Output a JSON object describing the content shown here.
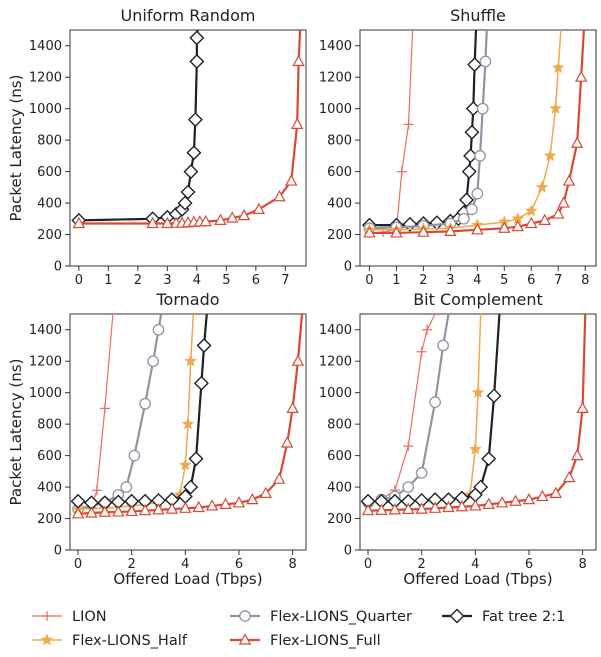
{
  "ylabel": "Packet Latency (ns)",
  "xlabel": "Offered Load (Tbps)",
  "legend": [
    {
      "key": "lion",
      "name": "LION",
      "color": "#e8705f",
      "marker": "plus",
      "width": 1.2
    },
    {
      "key": "half",
      "name": "Flex-LIONS_Half",
      "color": "#f0a84e",
      "marker": "star",
      "width": 1.5
    },
    {
      "key": "quarter",
      "name": "Flex-LIONS_Quarter",
      "color": "#8e96a3",
      "marker": "circle",
      "width": 2.2
    },
    {
      "key": "full",
      "name": "Flex-LIONS_Full",
      "color": "#d94a36",
      "marker": "triangle",
      "width": 2.2
    },
    {
      "key": "fat",
      "name": "Fat tree 2:1",
      "color": "#1e2228",
      "marker": "diamond",
      "width": 2.2
    }
  ],
  "chart_data": [
    {
      "type": "line",
      "title": "Uniform Random",
      "xlim": [
        -0.3,
        7.7
      ],
      "xticks": [
        "0",
        "1",
        "2",
        "3",
        "4",
        "5",
        "6",
        "7"
      ],
      "ylim": [
        0,
        1500
      ],
      "yticks": [
        "0",
        "200",
        "400",
        "600",
        "800",
        "1000",
        "1200",
        "1400"
      ],
      "series": [
        {
          "key": "fat",
          "x": [
            0,
            2.5,
            3.0,
            3.3,
            3.5,
            3.6,
            3.7,
            3.8,
            3.9,
            3.95,
            4.0,
            4.0,
            4.02
          ],
          "y": [
            290,
            300,
            310,
            330,
            360,
            400,
            470,
            600,
            720,
            930,
            1300,
            1450,
            1500
          ]
        },
        {
          "key": "full",
          "x": [
            0,
            2.5,
            3.0,
            3.3,
            3.5,
            3.7,
            3.9,
            4.1,
            4.3,
            4.8,
            5.2,
            5.6,
            6.1,
            6.8,
            7.2,
            7.4,
            7.45,
            7.5
          ],
          "y": [
            270,
            270,
            270,
            272,
            272,
            275,
            278,
            280,
            282,
            290,
            305,
            320,
            360,
            440,
            540,
            900,
            1300,
            1500
          ]
        }
      ]
    },
    {
      "type": "line",
      "title": "Shuffle",
      "xlim": [
        -0.35,
        8.4
      ],
      "xticks": [
        "0",
        "1",
        "2",
        "3",
        "4",
        "5",
        "6",
        "7",
        "8"
      ],
      "ylim": [
        0,
        1500
      ],
      "yticks": [
        "0",
        "200",
        "400",
        "600",
        "800",
        "1000",
        "1200",
        "1400"
      ],
      "series": [
        {
          "key": "lion",
          "x": [
            0,
            0.5,
            1.0,
            1.2,
            1.45,
            1.6
          ],
          "y": [
            210,
            215,
            230,
            600,
            900,
            1500
          ]
        },
        {
          "key": "fat",
          "x": [
            0,
            1.0,
            1.5,
            2.0,
            2.5,
            3.0,
            3.3,
            3.5,
            3.6,
            3.7,
            3.75,
            3.8,
            3.85,
            3.9,
            3.95
          ],
          "y": [
            260,
            260,
            265,
            270,
            275,
            285,
            300,
            340,
            420,
            600,
            700,
            850,
            1000,
            1280,
            1500
          ]
        },
        {
          "key": "quarter",
          "x": [
            0,
            1.0,
            2.0,
            3.0,
            3.5,
            3.8,
            4.0,
            4.1,
            4.2,
            4.3,
            4.35
          ],
          "y": [
            240,
            245,
            255,
            270,
            300,
            360,
            460,
            700,
            1000,
            1300,
            1500
          ]
        },
        {
          "key": "half",
          "x": [
            0,
            1.0,
            2.0,
            3.0,
            4.0,
            5.0,
            5.5,
            6.0,
            6.4,
            6.7,
            6.9,
            7.0,
            7.1
          ],
          "y": [
            230,
            230,
            235,
            240,
            260,
            280,
            300,
            350,
            500,
            700,
            1000,
            1260,
            1500
          ]
        },
        {
          "key": "full",
          "x": [
            0,
            1.0,
            2.0,
            3.0,
            4.0,
            5.0,
            5.5,
            6.0,
            6.5,
            7.0,
            7.2,
            7.4,
            7.7,
            7.85,
            7.95
          ],
          "y": [
            210,
            210,
            215,
            220,
            230,
            240,
            250,
            270,
            290,
            330,
            400,
            540,
            780,
            1200,
            1500
          ]
        }
      ]
    },
    {
      "type": "line",
      "title": "Tornado",
      "xlim": [
        -0.3,
        8.5
      ],
      "xticks": [
        "0",
        "2",
        "4",
        "6",
        "8"
      ],
      "ylim": [
        0,
        1500
      ],
      "yticks": [
        "0",
        "200",
        "400",
        "600",
        "800",
        "1000",
        "1200",
        "1400"
      ],
      "series": [
        {
          "key": "lion",
          "x": [
            0,
            0.5,
            0.7,
            1.0,
            1.3
          ],
          "y": [
            260,
            270,
            380,
            900,
            1500
          ]
        },
        {
          "key": "quarter",
          "x": [
            0,
            1.0,
            1.5,
            1.8,
            2.1,
            2.5,
            2.8,
            3.0,
            3.1
          ],
          "y": [
            260,
            300,
            350,
            400,
            600,
            930,
            1200,
            1400,
            1500
          ]
        },
        {
          "key": "half",
          "x": [
            0,
            1.0,
            2.0,
            3.0,
            3.8,
            4.0,
            4.1,
            4.2,
            4.3
          ],
          "y": [
            260,
            265,
            280,
            300,
            350,
            540,
            800,
            1200,
            1500
          ]
        },
        {
          "key": "fat",
          "x": [
            0,
            0.5,
            1.0,
            1.5,
            2.0,
            2.5,
            3.0,
            3.5,
            4.0,
            4.2,
            4.4,
            4.6,
            4.7,
            4.8
          ],
          "y": [
            310,
            300,
            300,
            305,
            310,
            310,
            315,
            320,
            340,
            400,
            580,
            1060,
            1300,
            1500
          ]
        },
        {
          "key": "full",
          "x": [
            0,
            0.5,
            1.0,
            1.5,
            2.0,
            2.5,
            3.0,
            3.5,
            4.0,
            4.5,
            5.0,
            5.5,
            6.0,
            6.5,
            7.0,
            7.5,
            7.8,
            8.0,
            8.2,
            8.35
          ],
          "y": [
            230,
            235,
            240,
            242,
            245,
            250,
            255,
            260,
            265,
            270,
            280,
            290,
            300,
            320,
            360,
            450,
            680,
            900,
            1200,
            1500
          ]
        }
      ]
    },
    {
      "type": "line",
      "title": "Bit Complement",
      "xlim": [
        -0.3,
        8.5
      ],
      "xticks": [
        "0",
        "2",
        "4",
        "6",
        "8"
      ],
      "ylim": [
        0,
        1500
      ],
      "yticks": [
        "0",
        "200",
        "400",
        "600",
        "800",
        "1000",
        "1200",
        "1400"
      ],
      "series": [
        {
          "key": "lion",
          "x": [
            0,
            0.5,
            1.0,
            1.5,
            2.0,
            2.2,
            2.5
          ],
          "y": [
            300,
            320,
            380,
            660,
            1260,
            1400,
            1500
          ]
        },
        {
          "key": "quarter",
          "x": [
            0,
            0.5,
            1.0,
            1.5,
            2.0,
            2.5,
            2.8,
            3.0
          ],
          "y": [
            300,
            320,
            340,
            400,
            490,
            940,
            1300,
            1500
          ]
        },
        {
          "key": "half",
          "x": [
            0,
            1.0,
            2.0,
            3.0,
            3.8,
            4.0,
            4.1,
            4.2
          ],
          "y": [
            300,
            305,
            310,
            320,
            350,
            640,
            1000,
            1500
          ]
        },
        {
          "key": "fat",
          "x": [
            0,
            0.5,
            1.0,
            1.5,
            2.0,
            2.5,
            3.0,
            3.5,
            4.0,
            4.2,
            4.5,
            4.7,
            4.9
          ],
          "y": [
            310,
            310,
            310,
            310,
            315,
            320,
            320,
            330,
            350,
            400,
            580,
            980,
            1500
          ]
        },
        {
          "key": "full",
          "x": [
            0,
            0.5,
            1.0,
            1.5,
            2.0,
            2.5,
            3.0,
            3.5,
            4.0,
            4.5,
            5.0,
            5.5,
            6.0,
            6.5,
            7.0,
            7.5,
            7.8,
            8.0,
            8.1
          ],
          "y": [
            250,
            252,
            255,
            258,
            260,
            265,
            270,
            275,
            280,
            290,
            300,
            310,
            320,
            340,
            360,
            460,
            600,
            900,
            1500
          ]
        }
      ]
    }
  ]
}
